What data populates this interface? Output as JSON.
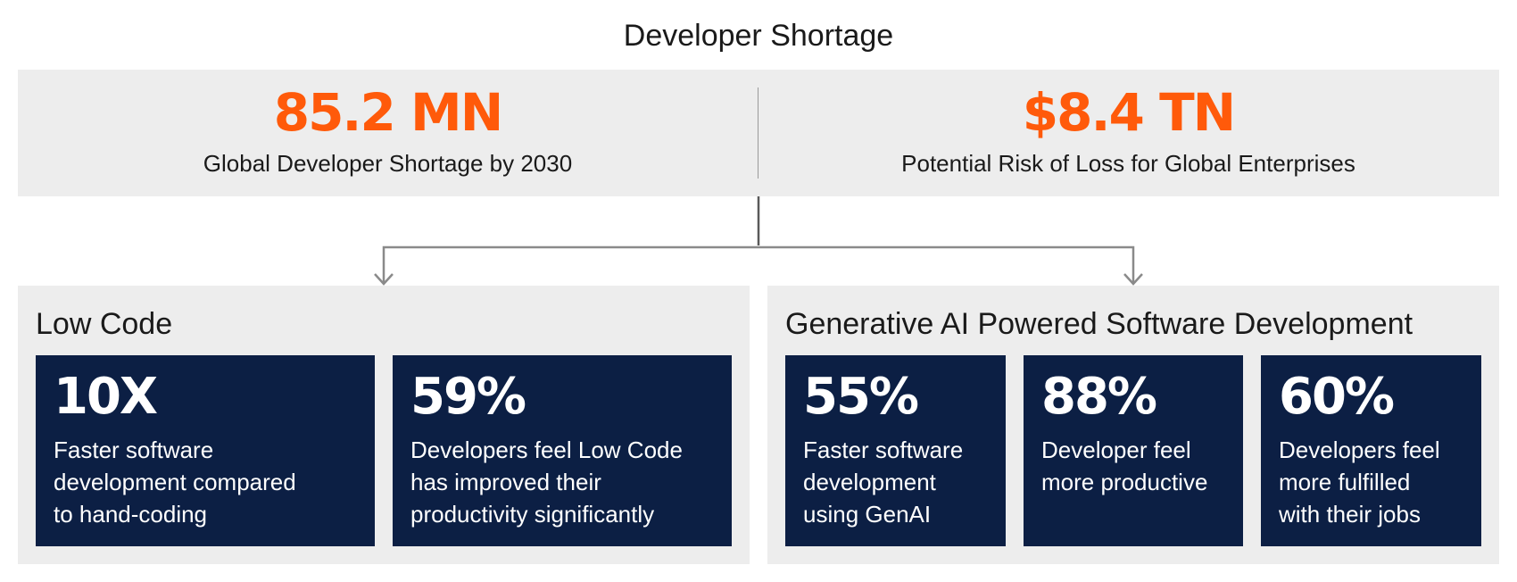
{
  "title": "Developer Shortage",
  "top_stats": [
    {
      "value": "85.2 MN",
      "label": "Global Developer Shortage by 2030"
    },
    {
      "value": "$8.4 TN",
      "label": "Potential Risk of Loss for Global Enterprises"
    }
  ],
  "groups": [
    {
      "title": "Low Code",
      "cards": [
        {
          "value": "10X",
          "lines": [
            "Faster software",
            "development compared",
            "to hand-coding"
          ]
        },
        {
          "value": "59%",
          "lines": [
            "Developers feel Low Code",
            "has improved their",
            "productivity significantly"
          ]
        }
      ]
    },
    {
      "title": "Generative AI Powered Software Development",
      "cards": [
        {
          "value": "55%",
          "lines": [
            "Faster software",
            "development",
            "using GenAI"
          ]
        },
        {
          "value": "88%",
          "lines": [
            "Developer feel",
            "more productive"
          ]
        },
        {
          "value": "60%",
          "lines": [
            "Developers feel",
            "more fulfilled",
            "with their jobs"
          ]
        }
      ]
    }
  ],
  "colors": {
    "accent": "#ff5a0a",
    "card_bg": "#0c1f44",
    "panel_bg": "#ededed",
    "connector": "#7a7a7a"
  }
}
